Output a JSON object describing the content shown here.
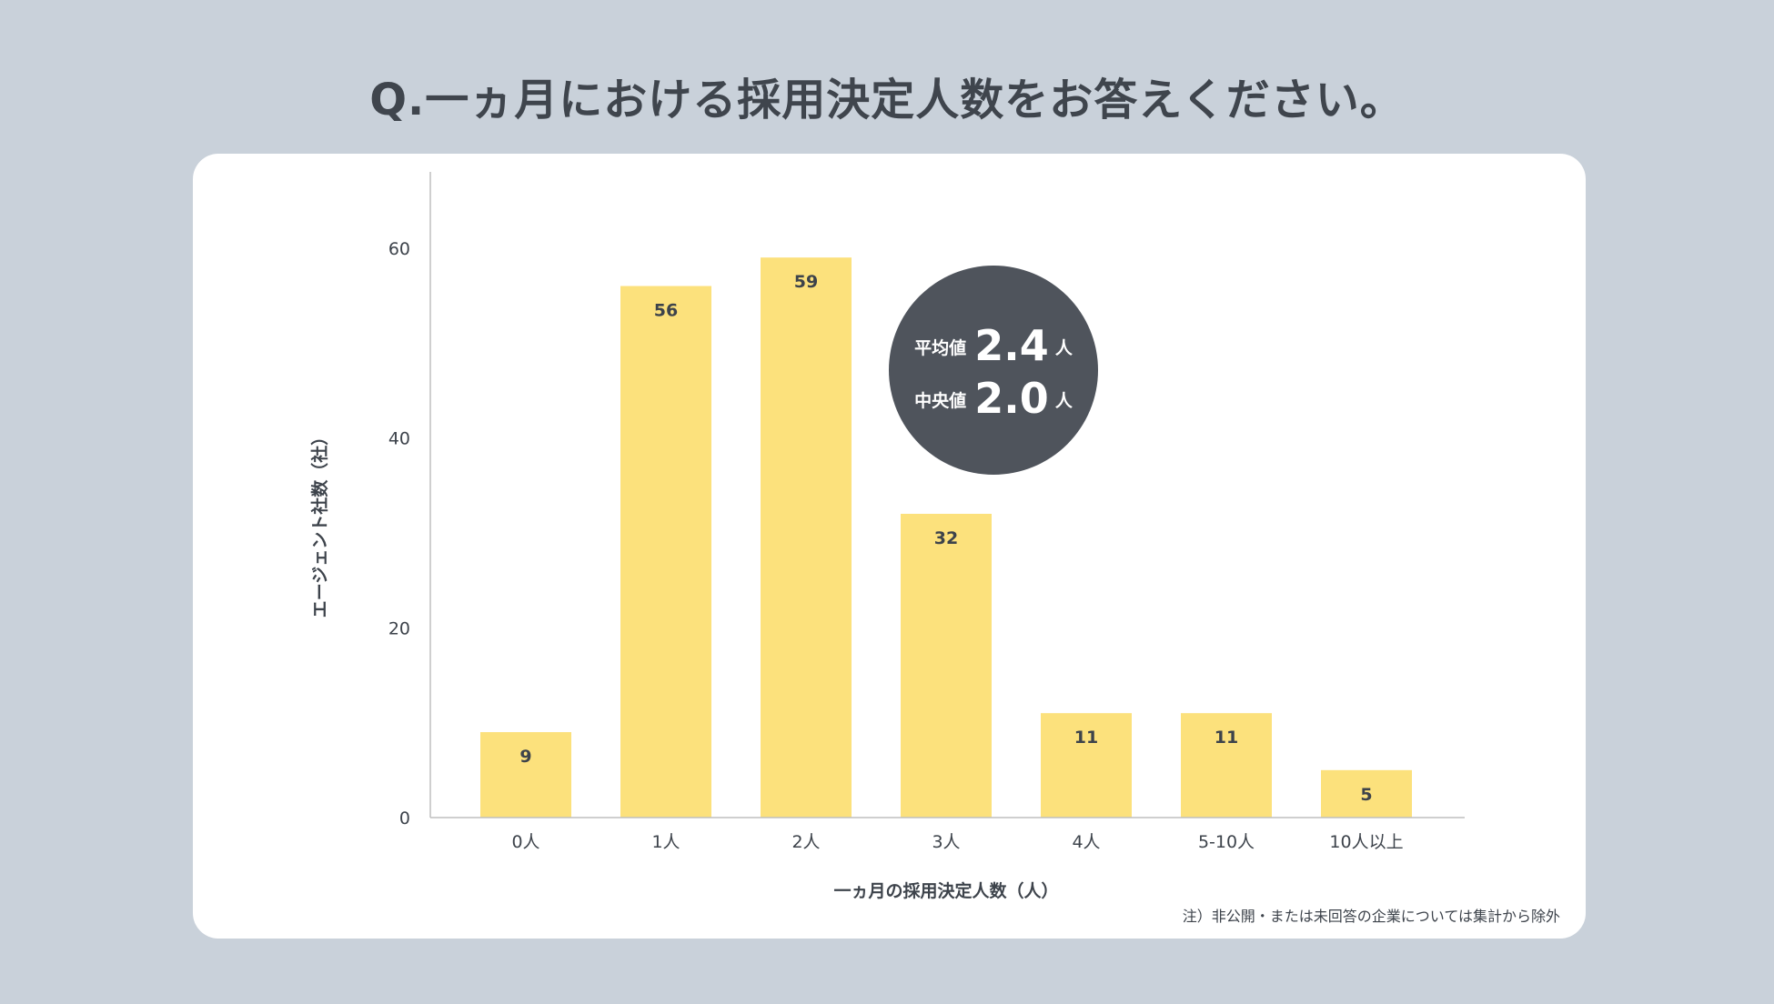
{
  "page": {
    "title": "Q.一ヵ月における採用決定人数をお答えください。",
    "footnote": "注）非公開・または未回答の企業については集計から除外"
  },
  "colors": {
    "background": "#c9d1da",
    "card": "#ffffff",
    "bar": "#fce17c",
    "axis": "#bfbfbf",
    "text": "#3d434b",
    "stats_circle": "#4f545c",
    "stats_text": "#ffffff"
  },
  "chart_data": {
    "type": "bar",
    "categories": [
      "0人",
      "1人",
      "2人",
      "3人",
      "4人",
      "5-10人",
      "10人以上"
    ],
    "values": [
      9,
      56,
      59,
      32,
      11,
      11,
      5
    ],
    "xlabel": "一ヵ月の採用決定人数（人）",
    "ylabel": "エージェント社数（社）",
    "ylim": [
      0,
      64
    ],
    "yticks": [
      0,
      20,
      40,
      60
    ],
    "grid": false,
    "data_labels": true
  },
  "stats": {
    "mean_label": "平均値",
    "mean_value": "2.4",
    "mean_unit": "人",
    "median_label": "中央値",
    "median_value": "2.0",
    "median_unit": "人"
  }
}
